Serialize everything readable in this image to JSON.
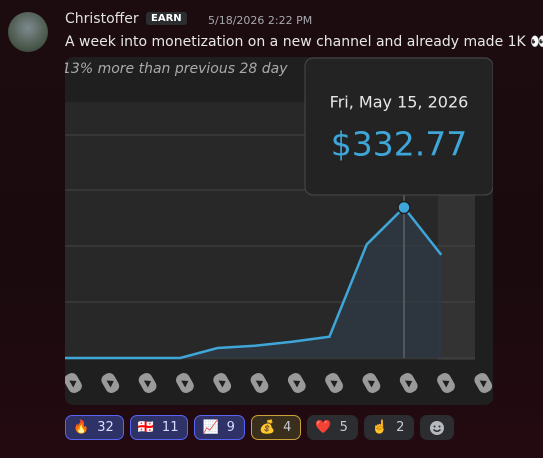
{
  "message": {
    "author": "Christoffer",
    "badge": "EARN",
    "timestamp": "5/18/2026 2:22 PM",
    "text": "A week into monetization on a new channel and already made 1K 👀",
    "image": {
      "subtitle": "13% more than previous 28 day",
      "chart": {
        "type": "line",
        "values": [
          0,
          0,
          0,
          0,
          0,
          22,
          27,
          36,
          47,
          251,
          332.77,
          228
        ],
        "ylim": [
          0,
          628
        ],
        "color": "#3ea6d8",
        "tooltip": {
          "index": 10,
          "date": "Fri, May 15, 2026",
          "label": "$332.77"
        }
      }
    },
    "reactions": [
      {
        "emoji": "🔥",
        "count": 32
      },
      {
        "emoji": "🇬🇪",
        "count": 11
      },
      {
        "emoji": "📈",
        "count": 9
      },
      {
        "emoji": "💰",
        "count": 4
      },
      {
        "emoji": "❤️",
        "count": 5
      },
      {
        "emoji": "☝️",
        "count": 2
      }
    ]
  }
}
